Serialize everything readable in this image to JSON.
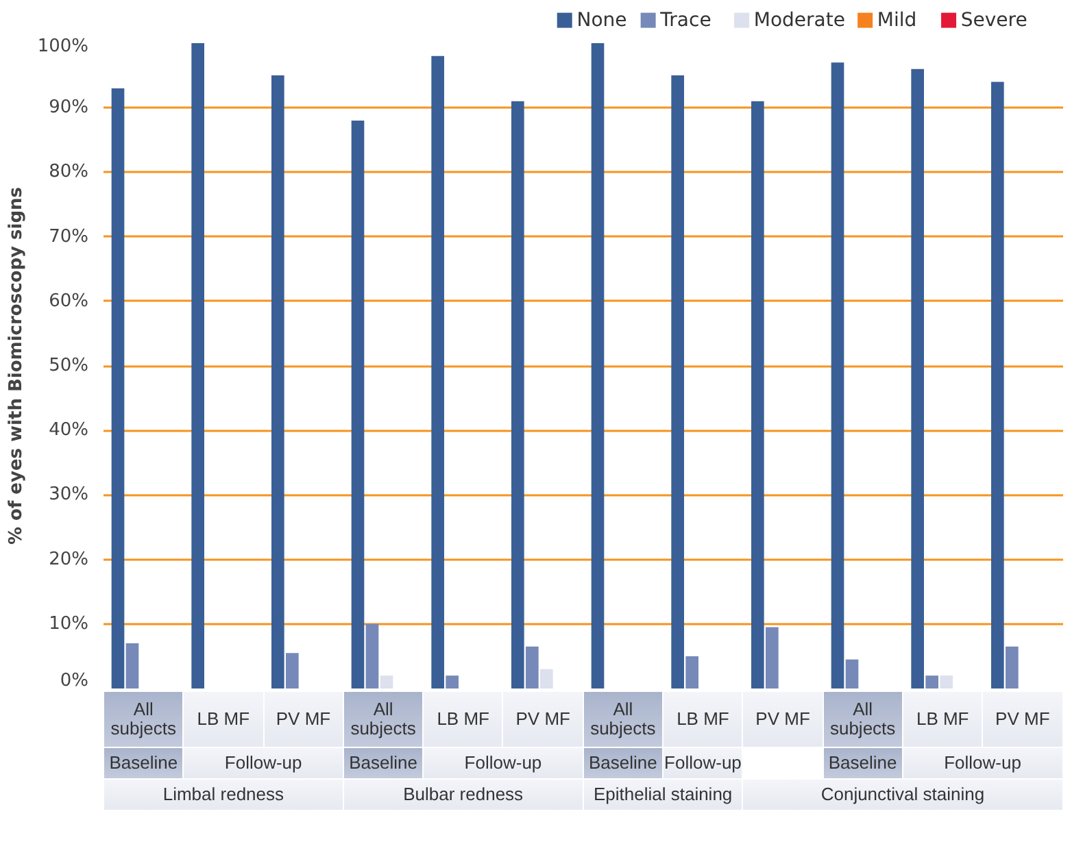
{
  "chart_data": {
    "type": "bar",
    "ylabel": "% of eyes with Biomicroscopy signs",
    "categories": [
      "All subjects",
      "LB MF",
      "PV MF",
      "All subjects",
      "LB MF",
      "PV MF",
      "All subjects",
      "LB MF",
      "PV MF",
      "All subjects",
      "LB MF",
      "PV MF"
    ],
    "series": [
      {
        "name": "None",
        "color": "#3a5f96",
        "values": [
          93,
          100,
          95,
          88,
          98,
          91,
          100,
          95,
          91,
          97,
          96,
          94
        ]
      },
      {
        "name": "Trace",
        "color": "#7689b8",
        "values": [
          7,
          0,
          5.5,
          10,
          2,
          6.5,
          0,
          5,
          9.5,
          4.5,
          2,
          6.5
        ]
      },
      {
        "name": "Moderate",
        "color": "#dde1ee",
        "values": [
          0,
          0,
          0,
          2,
          0,
          3,
          0,
          0,
          0,
          0,
          2,
          0
        ]
      },
      {
        "name": "Mild",
        "color": "#f5821f",
        "values": [
          0,
          0,
          0,
          0,
          0,
          0,
          0,
          0,
          0,
          0,
          0,
          0
        ]
      },
      {
        "name": "Severe",
        "color": "#e31937",
        "values": [
          0,
          0,
          0,
          0,
          0,
          0,
          0,
          0,
          0,
          0,
          0,
          0
        ]
      }
    ],
    "ylim": [
      0,
      100
    ],
    "yticks": [
      {
        "value": 0,
        "label": "0%"
      },
      {
        "value": 10,
        "label": "10%"
      },
      {
        "value": 20,
        "label": "20%"
      },
      {
        "value": 30,
        "label": "30%"
      },
      {
        "value": 40,
        "label": "40%"
      },
      {
        "value": 50,
        "label": "50%"
      },
      {
        "value": 60,
        "label": "60%"
      },
      {
        "value": 70,
        "label": "70%"
      },
      {
        "value": 80,
        "label": "80%"
      },
      {
        "value": 90,
        "label": "90%"
      },
      {
        "value": 100,
        "label": "100%"
      }
    ],
    "grid": "y",
    "legend": "top right",
    "annotations": [
      "Baseline",
      "Follow-up",
      "Baseline",
      "Follow-up",
      "Baseline",
      "Follow-up",
      "Baseline",
      "Follow-up",
      "Limbal redness",
      "Bulbar redness",
      "Epithelial staining",
      "Conjunctival staining"
    ]
  }
}
